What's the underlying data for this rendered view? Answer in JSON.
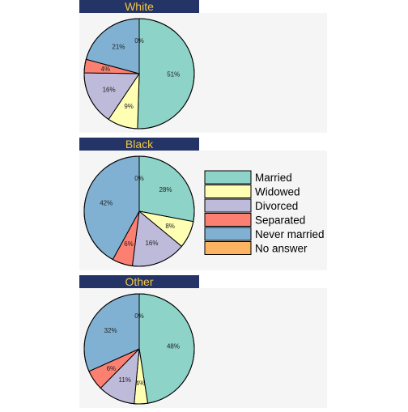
{
  "chart_data": {
    "type": "pie",
    "legend": {
      "position": "right",
      "entries": [
        "Married",
        "Widowed",
        "Divorced",
        "Separated",
        "Never married",
        "No answer"
      ]
    },
    "colors": [
      "#8DD3C7",
      "#FFFFB3",
      "#BEBADA",
      "#FB8072",
      "#80B1D3",
      "#FDB462"
    ],
    "panels": [
      {
        "title": "White",
        "values": [
          51,
          9,
          16,
          4,
          21,
          0
        ],
        "labels": [
          "51%",
          "9%",
          "16%",
          "4%",
          "21%",
          "0%"
        ]
      },
      {
        "title": "Black",
        "values": [
          28,
          8,
          16,
          6,
          42,
          0
        ],
        "labels": [
          "28%",
          "8%",
          "16%",
          "6%",
          "42%",
          "0%"
        ]
      },
      {
        "title": "Other",
        "values": [
          48,
          4,
          11,
          6,
          32,
          0
        ],
        "labels": [
          "48%",
          "4%",
          "11%",
          "6%",
          "32%",
          "0%"
        ]
      }
    ]
  },
  "style": {
    "strip_bg": "#253466",
    "strip_text": "#F2C744",
    "panel_bg": "#F5F5F5"
  }
}
